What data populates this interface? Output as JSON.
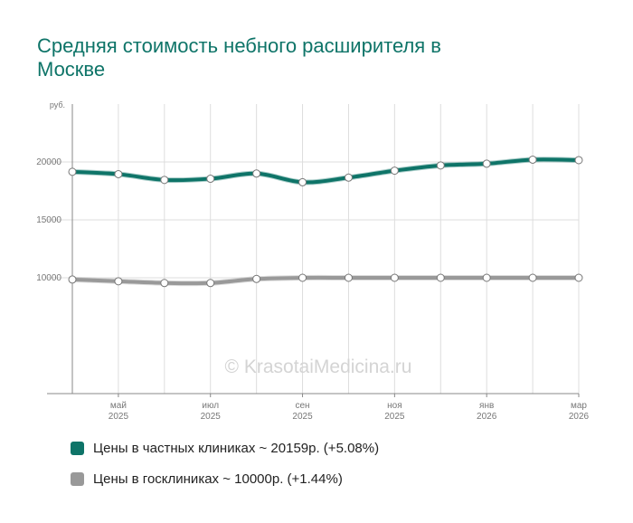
{
  "title": "Средняя стоимость небного расширителя в Москве",
  "watermark": "© KrasotaiMedicina.ru",
  "chart_data": {
    "type": "line",
    "title": "Средняя стоимость небного расширителя в Москве",
    "ylabel": "руб.",
    "xlabel": "",
    "ylim": [
      0,
      25000
    ],
    "grid": true,
    "yticks": [
      10000,
      15000,
      20000
    ],
    "unit_label": "руб.",
    "x": [
      0,
      1,
      2,
      3,
      4,
      5,
      6,
      7,
      8,
      9,
      10,
      11
    ],
    "xticks": [
      {
        "i": 1,
        "month": "май",
        "year": "2025"
      },
      {
        "i": 3,
        "month": "июл",
        "year": "2025"
      },
      {
        "i": 5,
        "month": "сен",
        "year": "2025"
      },
      {
        "i": 7,
        "month": "ноя",
        "year": "2025"
      },
      {
        "i": 9,
        "month": "янв",
        "year": "2026"
      },
      {
        "i": 11,
        "month": "мар",
        "year": "2026"
      }
    ],
    "series": [
      {
        "name": "Цены в частных клиниках",
        "legend": "Цены в частных клиниках ~ 20159р. (+5.08%)",
        "color": "#0e7468",
        "values": [
          19150,
          18950,
          18450,
          18550,
          19000,
          18250,
          18650,
          19250,
          19700,
          19850,
          20200,
          20159
        ]
      },
      {
        "name": "Цены в госклиниках",
        "legend": "Цены в госклиниках ~ 10000р. (+1.44%)",
        "color": "#999999",
        "values": [
          9850,
          9700,
          9550,
          9550,
          9900,
          10000,
          10000,
          10000,
          10000,
          10000,
          10000,
          10000
        ]
      }
    ]
  }
}
